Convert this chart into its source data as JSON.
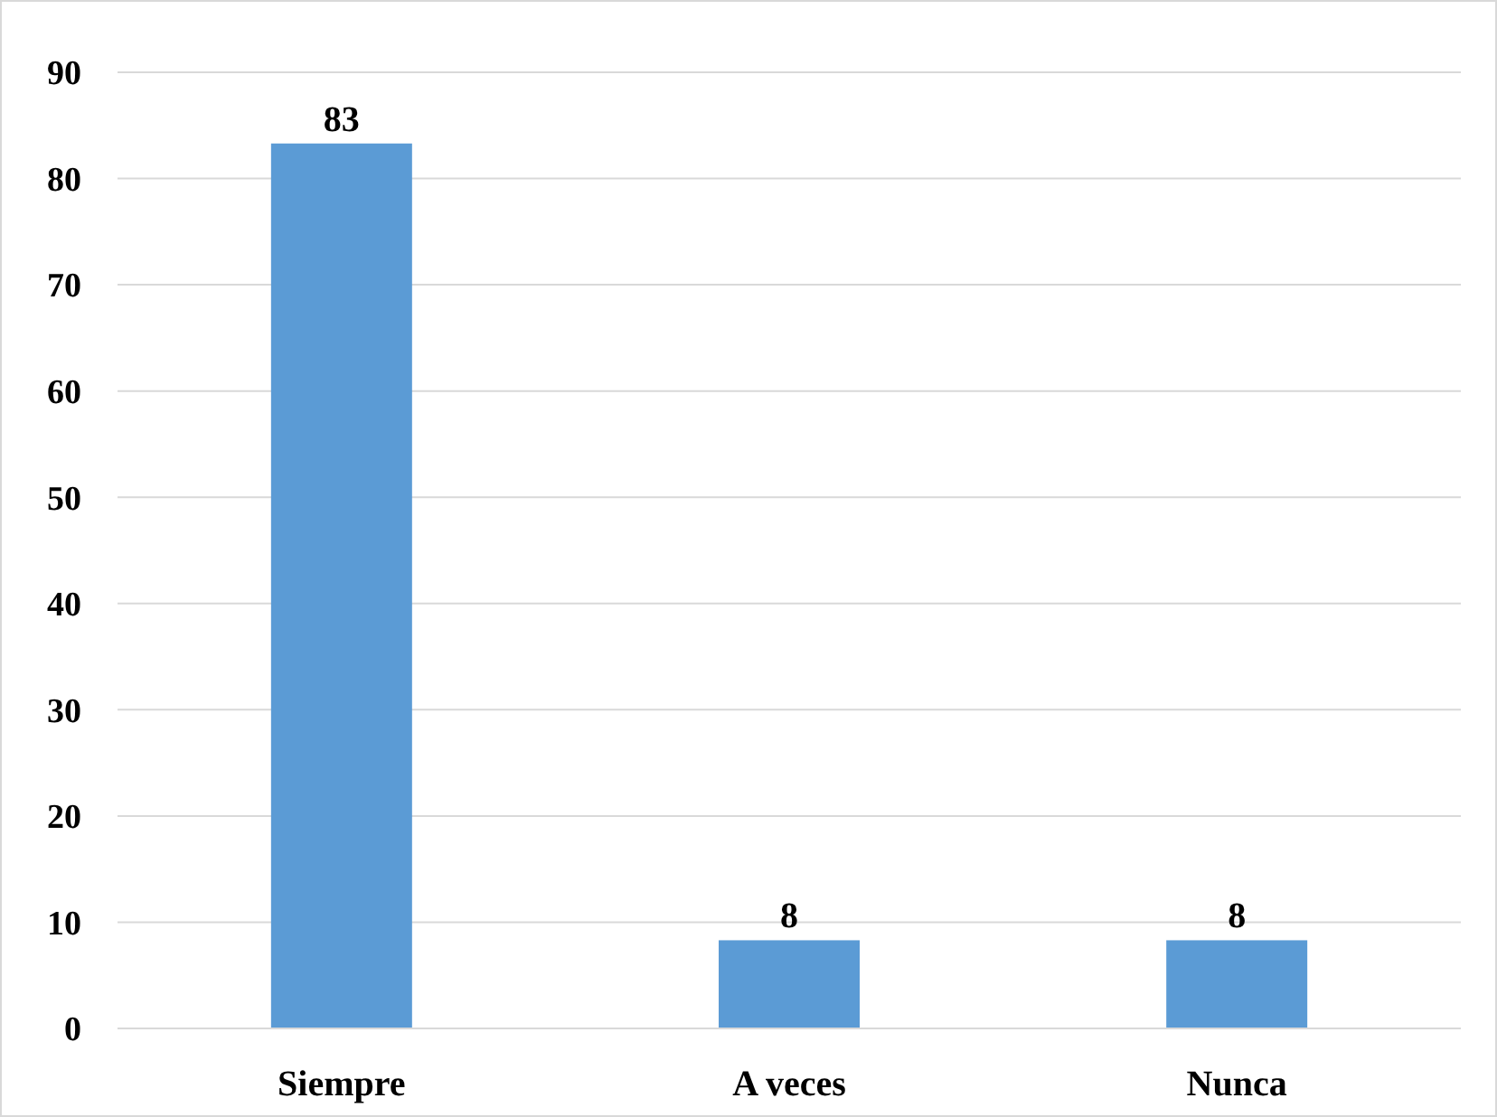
{
  "chart_data": {
    "type": "bar",
    "categories": [
      "Siempre",
      "A veces",
      "Nunca"
    ],
    "values": [
      83.3,
      8.3,
      8.3
    ],
    "value_labels": [
      "83",
      "8",
      "8"
    ],
    "color": "#5b9bd5",
    "ylim": [
      0,
      90
    ],
    "yticks": [
      0,
      10,
      20,
      30,
      40,
      50,
      60,
      70,
      80,
      90
    ],
    "grid": "y"
  }
}
